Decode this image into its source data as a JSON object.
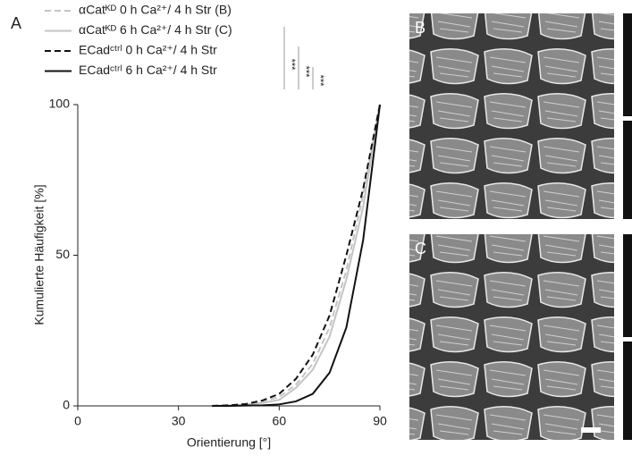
{
  "chart_data": {
    "type": "line",
    "panel_label": "A",
    "xlabel": "Orientierung [°]",
    "ylabel": "Kumulierte Häufigkeit [%]",
    "x": [
      40,
      45,
      50,
      55,
      60,
      65,
      70,
      75,
      80,
      85,
      90
    ],
    "series": [
      {
        "name": "αCatᴷᴰ 0 h Ca²⁺/ 4 h Str (B)",
        "color": "#c4c4c4",
        "dash": true,
        "values": [
          0,
          0.2,
          0.6,
          1.5,
          3,
          7,
          14,
          26,
          45,
          70,
          100
        ]
      },
      {
        "name": "αCatᴷᴰ 6 h Ca²⁺/ 4 h Str (C)",
        "color": "#c4c4c4",
        "dash": false,
        "values": [
          0,
          0.1,
          0.4,
          1,
          2,
          6,
          12,
          23,
          42,
          66,
          100
        ]
      },
      {
        "name": "ECadᶜᵗʳˡ 0 h Ca²⁺/ 4 h Str",
        "color": "#111111",
        "dash": true,
        "values": [
          0,
          0.2,
          0.6,
          1.8,
          4,
          9,
          17,
          30,
          50,
          72,
          100
        ]
      },
      {
        "name": "ECadᶜᵗʳˡ 6 h Ca²⁺/ 4 h Str",
        "color": "#111111",
        "dash": false,
        "values": [
          0,
          0,
          0.1,
          0.2,
          0.5,
          1.5,
          4,
          11,
          26,
          55,
          100
        ]
      }
    ],
    "annotations": [
      "***",
      "***",
      "***"
    ],
    "xlim": [
      0,
      90
    ],
    "xticks": [
      0,
      30,
      60,
      90
    ],
    "ylim": [
      0,
      100
    ],
    "yticks": [
      0,
      50,
      100
    ]
  },
  "image_labels": [
    "B",
    "C"
  ]
}
